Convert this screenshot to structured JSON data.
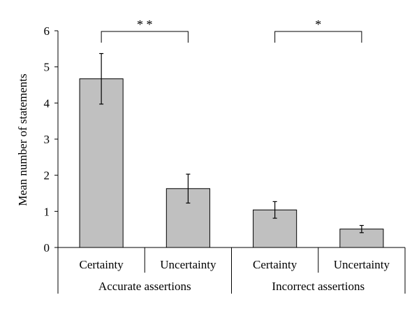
{
  "chart_data": {
    "type": "bar",
    "title": "",
    "xlabel": "",
    "ylabel": "Mean number of statements",
    "ylim": [
      0,
      6
    ],
    "yticks": [
      0,
      1,
      2,
      3,
      4,
      5,
      6
    ],
    "grid": false,
    "legend": "none",
    "bar_color": "#c0c0c0",
    "groups": [
      {
        "name": "Accurate assertions",
        "categories": [
          "Certainty",
          "Uncertainty"
        ],
        "values": [
          4.67,
          1.63
        ],
        "errors": [
          0.7,
          0.4
        ],
        "significance": "* *"
      },
      {
        "name": "Incorrect assertions",
        "categories": [
          "Certainty",
          "Uncertainty"
        ],
        "values": [
          1.04,
          0.51
        ],
        "errors": [
          0.23,
          0.1
        ],
        "significance": "*"
      }
    ]
  }
}
